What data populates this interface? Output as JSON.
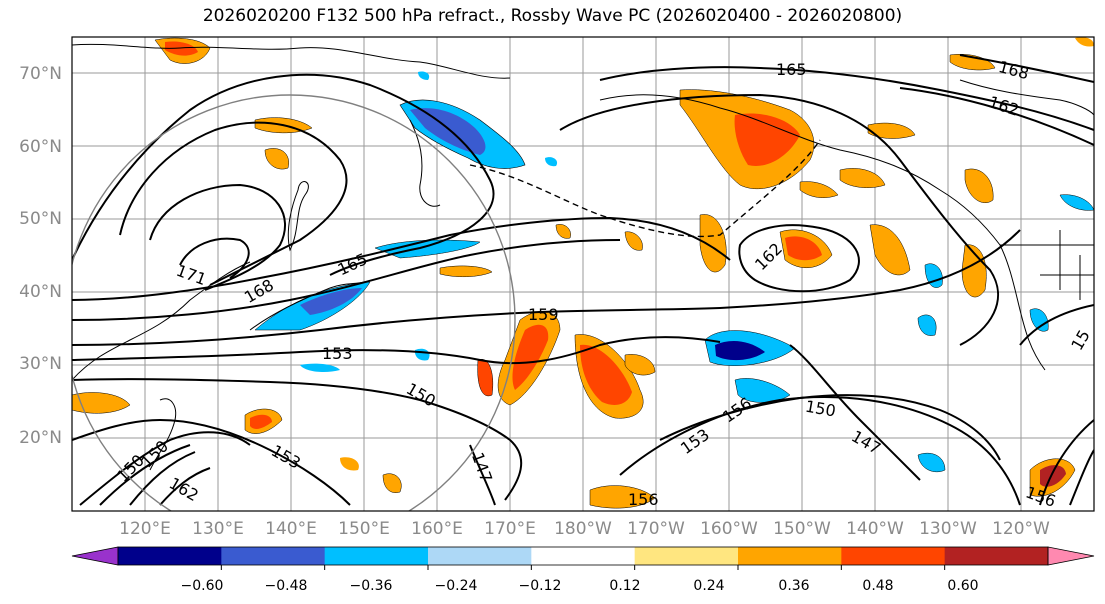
{
  "title": "2026020200 F132 500 hPa refract., Rossby Wave PC (2026020400 - 2026020800)",
  "map": {
    "lat_labels": [
      "70°N",
      "60°N",
      "50°N",
      "40°N",
      "30°N",
      "20°N"
    ],
    "lon_labels": [
      "120°E",
      "130°E",
      "140°E",
      "150°E",
      "160°E",
      "170°E",
      "180°W",
      "170°W",
      "160°W",
      "150°W",
      "140°W",
      "130°W",
      "120°W"
    ],
    "contour_labels": [
      "165",
      "168",
      "162",
      "171",
      "168",
      "165",
      "159",
      "153",
      "150",
      "156",
      "162",
      "150",
      "147",
      "153",
      "150",
      "156",
      "147",
      "150",
      "153",
      "162",
      "156",
      "15"
    ]
  },
  "colorbar": {
    "ticks": [
      "−0.60",
      "−0.48",
      "−0.36",
      "−0.24",
      "−0.12",
      "0.12",
      "0.24",
      "0.36",
      "0.48",
      "0.60"
    ],
    "colors": [
      "#9932cc",
      "#00008b",
      "#3a5bd0",
      "#00bfff",
      "#add8f6",
      "#ffffff",
      "#ffe680",
      "#ffa500",
      "#ff4500",
      "#b22222",
      "#ff89b0"
    ]
  }
}
